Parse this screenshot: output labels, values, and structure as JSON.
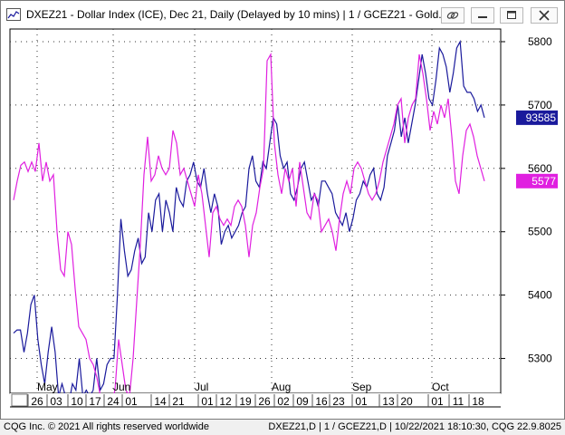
{
  "window": {
    "title": "DXEZ21 - Dollar Index (ICE), Dec 21, Daily (Delayed by 10 mins)   |  1 / GCEZ21 - Gold..."
  },
  "footer": {
    "left": "CQG Inc. © 2021 All rights reserved worldwide",
    "right": "DXEZ21,D  |  1 / GCEZ21,D | 10/22/2021 18:10:30, CQG 22.9.8025"
  },
  "chart_data": {
    "type": "line",
    "y_axis": {
      "ticks": [
        5300,
        5400,
        5500,
        5600,
        5700,
        5800
      ],
      "range": [
        5245,
        5820
      ],
      "position": "right"
    },
    "x_axis": {
      "day_labels": [
        "26",
        "03",
        "10",
        "17",
        "24",
        "01",
        "14",
        "21",
        "01",
        "12",
        "19",
        "26",
        "02",
        "09",
        "16",
        "23",
        "01",
        "13",
        "20",
        "01",
        "11",
        "18"
      ],
      "month_labels": [
        "May",
        "Jun",
        "Jul",
        "Aug",
        "Sep",
        "Oct"
      ]
    },
    "grid": true,
    "series": [
      {
        "color": "#1a1a9c",
        "last_label": "93585",
        "values": [
          5340,
          5345,
          5345,
          5310,
          5340,
          5385,
          5400,
          5330,
          5290,
          5260,
          5310,
          5350,
          5310,
          5240,
          5260,
          5240,
          5230,
          5260,
          5250,
          5300,
          5240,
          5250,
          5240,
          5250,
          5300,
          5250,
          5260,
          5290,
          5300,
          5300,
          5400,
          5520,
          5470,
          5430,
          5440,
          5470,
          5490,
          5450,
          5460,
          5530,
          5500,
          5550,
          5560,
          5500,
          5550,
          5530,
          5500,
          5570,
          5550,
          5540,
          5580,
          5590,
          5610,
          5580,
          5570,
          5600,
          5560,
          5530,
          5560,
          5540,
          5480,
          5500,
          5510,
          5490,
          5500,
          5510,
          5530,
          5540,
          5600,
          5620,
          5580,
          5570,
          5610,
          5600,
          5640,
          5680,
          5670,
          5620,
          5600,
          5610,
          5560,
          5550,
          5570,
          5600,
          5610,
          5580,
          5550,
          5560,
          5540,
          5580,
          5580,
          5570,
          5560,
          5530,
          5520,
          5510,
          5530,
          5500,
          5520,
          5550,
          5560,
          5580,
          5570,
          5590,
          5600,
          5560,
          5550,
          5570,
          5620,
          5640,
          5660,
          5700,
          5650,
          5680,
          5640,
          5670,
          5700,
          5740,
          5780,
          5750,
          5710,
          5700,
          5740,
          5790,
          5780,
          5760,
          5720,
          5750,
          5790,
          5800,
          5730,
          5720,
          5720,
          5710,
          5690,
          5700,
          5680
        ]
      },
      {
        "color": "#e020e0",
        "last_label": "5577",
        "values": [
          5550,
          5580,
          5605,
          5610,
          5595,
          5610,
          5595,
          5640,
          5580,
          5610,
          5580,
          5590,
          5500,
          5440,
          5430,
          5500,
          5480,
          5410,
          5350,
          5340,
          5330,
          5300,
          5290,
          5270,
          5240,
          5230,
          5240,
          5230,
          5250,
          5330,
          5290,
          5250,
          5240,
          5300,
          5390,
          5480,
          5590,
          5650,
          5580,
          5590,
          5620,
          5600,
          5590,
          5600,
          5660,
          5640,
          5590,
          5600,
          5580,
          5560,
          5540,
          5590,
          5560,
          5510,
          5460,
          5530,
          5540,
          5520,
          5510,
          5520,
          5510,
          5540,
          5550,
          5540,
          5510,
          5460,
          5510,
          5530,
          5570,
          5600,
          5770,
          5780,
          5640,
          5590,
          5560,
          5600,
          5580,
          5600,
          5540,
          5610,
          5570,
          5530,
          5520,
          5560,
          5550,
          5500,
          5510,
          5520,
          5500,
          5470,
          5520,
          5560,
          5580,
          5560,
          5600,
          5610,
          5600,
          5580,
          5560,
          5550,
          5560,
          5580,
          5610,
          5630,
          5650,
          5670,
          5700,
          5710,
          5640,
          5680,
          5700,
          5710,
          5780,
          5750,
          5710,
          5660,
          5690,
          5670,
          5700,
          5680,
          5710,
          5650,
          5580,
          5560,
          5620,
          5660,
          5670,
          5650,
          5620,
          5600,
          5580
        ]
      }
    ]
  }
}
